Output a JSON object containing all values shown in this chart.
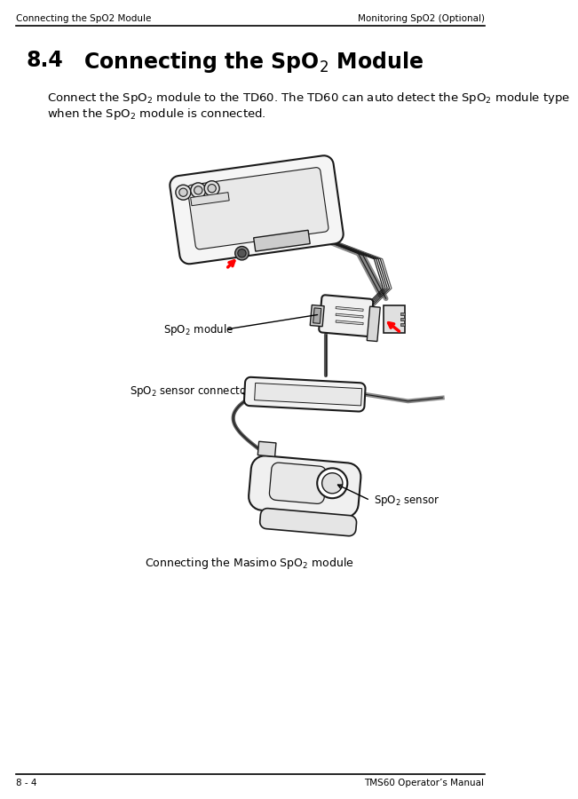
{
  "header_left": "Connecting the SpO2 Module",
  "header_right": "Monitoring SpO2 (Optional)",
  "footer_left": "8 - 4",
  "footer_right": "TMS60 Operator’s Manual",
  "section_number": "8.4",
  "section_title": "Connecting the SpO$_2$ Module",
  "body_line1": "Connect the SpO$_2$ module to the TD60. The TD60 can auto detect the SpO$_2$ module type",
  "body_line2": "when the SpO$_2$ module is connected.",
  "label_spo2_module": "SpO$_2$ module",
  "label_spo2_sensor_connector": "SpO$_2$ sensor connector",
  "label_spo2_sensor": "SpO$_2$ sensor",
  "caption": "Connecting the Masimo SpO$_2$ module",
  "bg_color": "#ffffff",
  "text_color": "#000000",
  "line_color": "#1a1a1a",
  "header_fontsize": 7.5,
  "title_fontsize": 17,
  "body_fontsize": 9.5,
  "footer_fontsize": 7.5,
  "label_fontsize": 8.5,
  "caption_fontsize": 9
}
